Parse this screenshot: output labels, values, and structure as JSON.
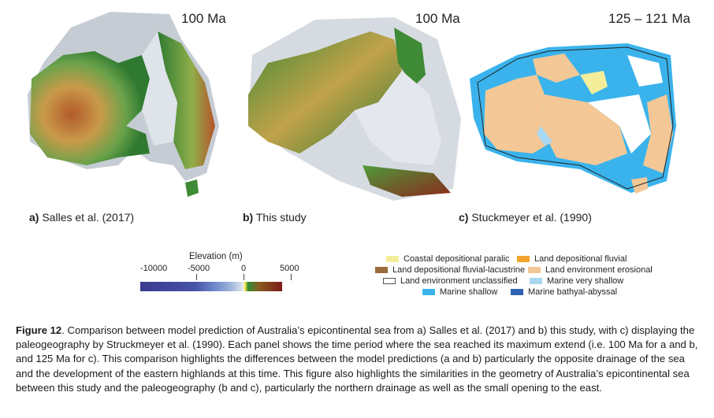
{
  "panels": [
    {
      "time_label": "100 Ma",
      "caption_letter": "a)",
      "caption_text": "Salles et al. (2017)"
    },
    {
      "time_label": "100 Ma",
      "caption_letter": "b)",
      "caption_text": "This study"
    },
    {
      "time_label": "125 – 121 Ma",
      "caption_letter": "c)",
      "caption_text": "Stuckmeyer et al. (1990)"
    }
  ],
  "elevation_legend": {
    "title": "Elevation (m)",
    "ticks": [
      "-10000",
      "-5000",
      "0",
      "5000"
    ]
  },
  "paleo_legend": {
    "items": [
      {
        "label": "Coastal depositional paralic",
        "color": "#f4ee9a"
      },
      {
        "label": "Land depositional fluvial",
        "color": "#f2a52c"
      },
      {
        "label": "Land depositional fluvial-lacustrine",
        "color": "#9a6b3a"
      },
      {
        "label": "Land environment erosional",
        "color": "#f3c896"
      },
      {
        "label": "Land environment unclassified",
        "color": "#ffffff"
      },
      {
        "label": "Marine very shallow",
        "color": "#a9d8f2"
      },
      {
        "label": "Marine shallow",
        "color": "#3ab3ec"
      },
      {
        "label": "Marine bathyal-abyssal",
        "color": "#2f63b3"
      }
    ]
  },
  "figure_caption": {
    "label": "Figure 12",
    "text": ". Comparison between model prediction of Australia’s epicontinental sea from a) Salles et al. (2017) and b) this study, with c) displaying the paleogeography by Struckmeyer et al. (1990). Each panel shows the time period where the sea reached its maximum extend (i.e. 100 Ma for a and b, and 125 Ma for c). This comparison highlights the differences between the model predictions (a and b) particularly the opposite drainage of the sea and the development of the eastern highlands at this time. This figure also highlights the similarities in the geometry of Australia’s epicontinental sea between this study and the paleogeography (b and c), particularly the northern drainage as well as the small opening to the east."
  }
}
